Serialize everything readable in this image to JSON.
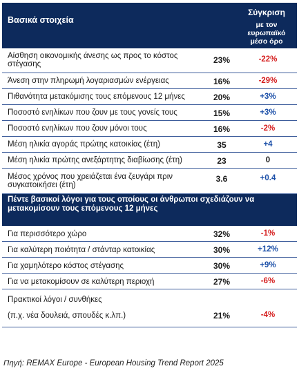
{
  "header": {
    "title": "Βασικά στοιχεία",
    "compare_line1": "Σύγκριση",
    "compare_line2": "με τον ευρωπαϊκό μέσο όρο"
  },
  "rows": [
    {
      "label": "Αίσθηση οικονομικής άνεσης ως προς το κόστος στέγασης",
      "value": "23%",
      "compare": "-22%",
      "tone": "neg"
    },
    {
      "label": "Άνεση στην πληρωμή λογαριασμών ενέργειας",
      "value": "16%",
      "compare": "-29%",
      "tone": "neg"
    },
    {
      "label": "Πιθανότητα μετακόμισης τους επόμενους 12 μήνες",
      "value": "20%",
      "compare": "+3%",
      "tone": "pos"
    },
    {
      "label": "Ποσοστό ενηλίκων που ζουν με τους γονείς τους",
      "value": "15%",
      "compare": "+3%",
      "tone": "pos"
    },
    {
      "label": "Ποσοστό ενηλίκων που ζουν μόνοι τους",
      "value": "16%",
      "compare": "-2%",
      "tone": "neg"
    },
    {
      "label": "Μέση ηλικία αγοράς πρώτης κατοικίας (έτη)",
      "value": "35",
      "compare": "+4",
      "tone": "pos"
    },
    {
      "label": "Μέση ηλικία πρώτης ανεξάρτητης διαβίωσης (έτη)",
      "value": "23",
      "compare": "0",
      "tone": "zero"
    },
    {
      "label": "Μέσος χρόνος που χρειάζεται ένα ζευγάρι πριν συγκατοικήσει (έτη)",
      "value": "3.6",
      "compare": "+0.4",
      "tone": "pos"
    }
  ],
  "section": {
    "title": "Πέντε βασικοί λόγοι για τους οποίους οι άνθρωποι σχεδιάζουν να μετακομίσουν τους επόμενους 12 μήνες"
  },
  "reasons": [
    {
      "label": "Για περισσότερο χώρο",
      "value": "32%",
      "compare": "-1%",
      "tone": "neg"
    },
    {
      "label": "Για καλύτερη ποιότητα / στάνταρ κατοικίας",
      "value": "30%",
      "compare": "+12%",
      "tone": "pos"
    },
    {
      "label": "Για χαμηλότερο κόστος στέγασης",
      "value": "30%",
      "compare": "+9%",
      "tone": "pos"
    },
    {
      "label": "Για να μετακομίσουν σε καλύτερη περιοχή",
      "value": "27%",
      "compare": "-6%",
      "tone": "neg"
    }
  ],
  "last_reason": {
    "label_line1": "Πρακτικοί λόγοι / συνθήκες",
    "label_line2": "(π.χ. νέα δουλειά, σπουδές κ.λπ.)",
    "value": "21%",
    "compare": "-4%",
    "tone": "neg"
  },
  "source": "Πηγή: REMAX Europe - European Housing Trend Report 2025",
  "colors": {
    "header_bg": "#0d2a5c",
    "negative": "#d51e1e",
    "positive": "#1b4fa8",
    "rule": "#3b5b9a"
  }
}
